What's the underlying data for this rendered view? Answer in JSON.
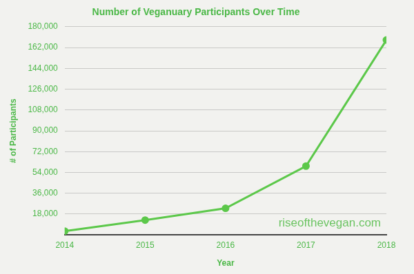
{
  "chart_data": {
    "type": "line",
    "title": "Number of Veganuary Participants Over Time",
    "x_label": "Year",
    "y_label": "# of Participants",
    "annotation": "riseofthevegan.com",
    "categories": [
      "2014",
      "2015",
      "2016",
      "2017",
      "2018"
    ],
    "values": [
      3300,
      12800,
      23000,
      59500,
      168500
    ],
    "color": "#5cc84a",
    "marker": "circle",
    "line_style": "solid",
    "ylim": [
      0,
      180000
    ],
    "yticks": [
      {
        "value": 18000,
        "label": "18,000"
      },
      {
        "value": 36000,
        "label": "36,000"
      },
      {
        "value": 54000,
        "label": "54,000"
      },
      {
        "value": 72000,
        "label": "72,000"
      },
      {
        "value": 90000,
        "label": "90,000"
      },
      {
        "value": 108000,
        "label": "108,000"
      },
      {
        "value": 126000,
        "label": "126,000"
      },
      {
        "value": 144000,
        "label": "144,000"
      },
      {
        "value": 162000,
        "label": "162,000"
      },
      {
        "value": 180000,
        "label": "180,000"
      }
    ],
    "grid": true
  }
}
